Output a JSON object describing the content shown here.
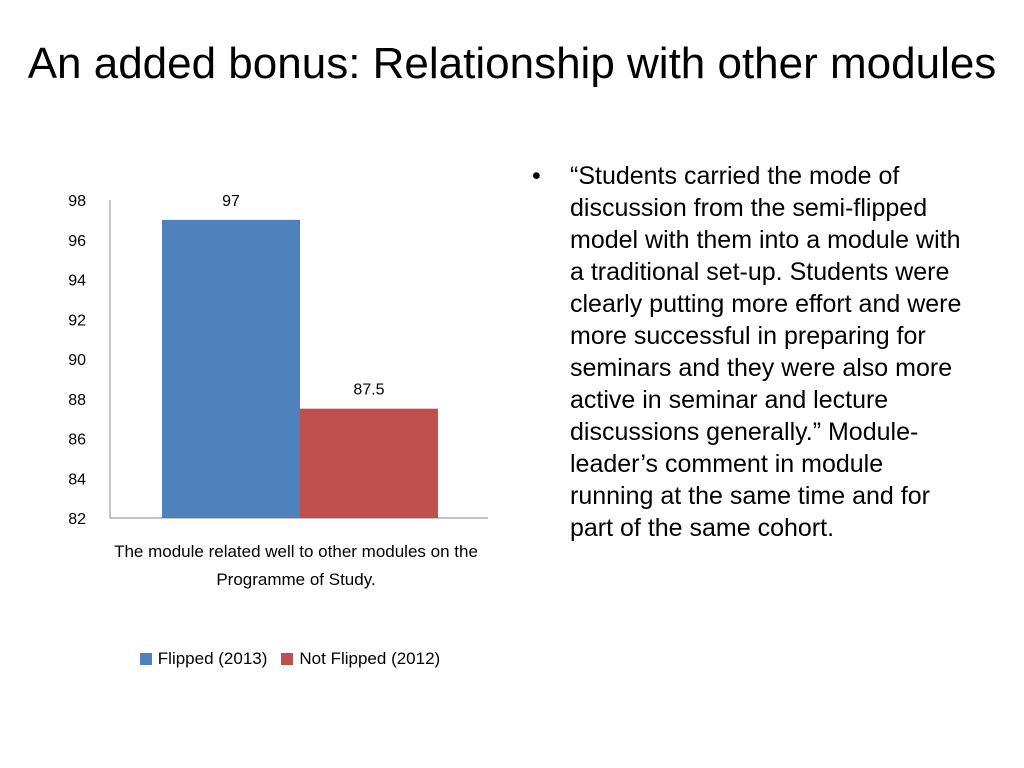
{
  "slide": {
    "title": "An added bonus: Relationship with other modules",
    "bullet_symbol": "•",
    "bullet_text": "“Students carried the mode of discussion from the semi-flipped model with them into a module with a traditional set-up.  Students were clearly putting more effort and were more successful in preparing for seminars and they were also more active in seminar and lecture discussions generally.” Module-leader’s comment in module running at the same time and for part of the same cohort."
  },
  "chart_data": {
    "type": "bar",
    "categories": [
      "The module related well to other modules on the Programme of Study."
    ],
    "series": [
      {
        "name": "Flipped (2013)",
        "values": [
          97
        ],
        "color": "#4F81BD"
      },
      {
        "name": "Not Flipped (2012)",
        "values": [
          87.5
        ],
        "color": "#C0504D"
      }
    ],
    "ylim": [
      82,
      98
    ],
    "yticks": [
      "98",
      "96",
      "94",
      "92",
      "90",
      "88",
      "86",
      "84",
      "82"
    ],
    "data_labels": [
      "97",
      "87.5"
    ],
    "grid": false,
    "legend_position": "bottom"
  }
}
